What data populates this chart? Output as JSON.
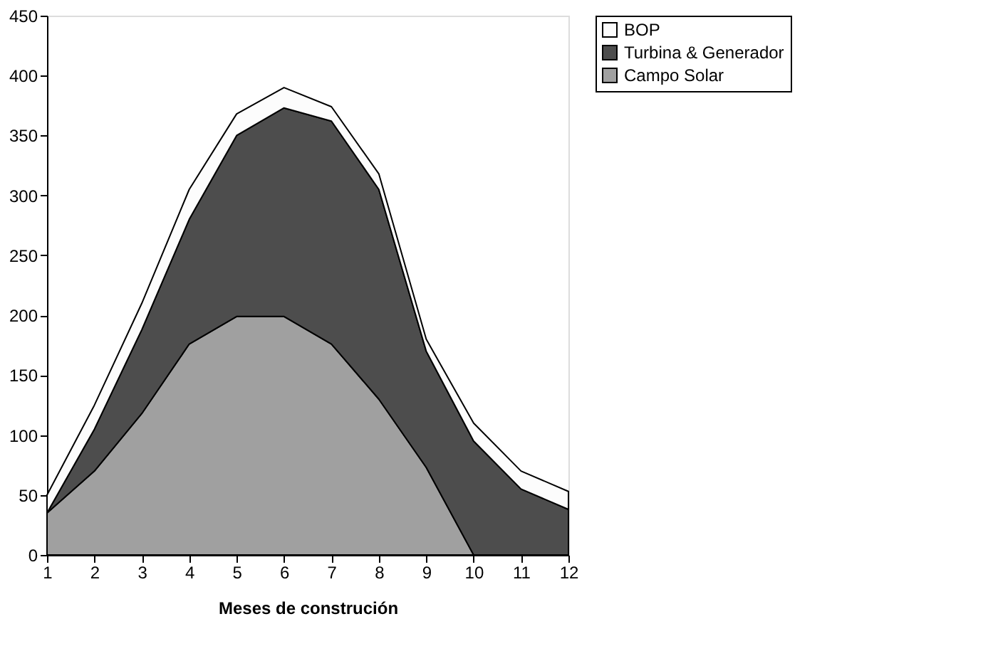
{
  "chart_data": {
    "type": "area",
    "stacked": true,
    "xlabel": "Meses de construción",
    "x": [
      1,
      2,
      3,
      4,
      5,
      6,
      7,
      8,
      9,
      10,
      11,
      12
    ],
    "series": [
      {
        "name": "Campo Solar",
        "color": "#a0a0a0",
        "values": [
          35,
          70,
          118,
          176,
          199,
          199,
          176,
          130,
          73,
          0,
          0,
          0
        ]
      },
      {
        "name": "Turbina & Generador",
        "color": "#4d4d4d",
        "values": [
          0,
          35,
          70,
          104,
          151,
          174,
          186,
          175,
          97,
          95,
          55,
          38
        ]
      },
      {
        "name": "BOP",
        "color": "#fcfcfc",
        "values": [
          15,
          20,
          22,
          25,
          18,
          17,
          12,
          13,
          10,
          15,
          15,
          15
        ]
      }
    ],
    "xlim": [
      1,
      12
    ],
    "xticks": [
      1,
      2,
      3,
      4,
      5,
      6,
      7,
      8,
      9,
      10,
      11,
      12
    ],
    "ylim": [
      0,
      450
    ],
    "yticks": [
      0,
      50,
      100,
      150,
      200,
      250,
      300,
      350,
      400,
      450
    ],
    "grid": false,
    "legend": "right"
  }
}
